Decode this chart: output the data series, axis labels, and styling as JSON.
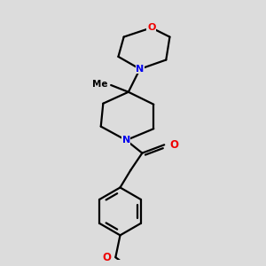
{
  "bg_color": "#dcdcdc",
  "bond_color": "#000000",
  "N_color": "#0000ee",
  "O_color": "#ee0000",
  "line_width": 1.6,
  "figsize": [
    3.0,
    3.0
  ],
  "dpi": 100,
  "xlim": [
    -1.4,
    1.6
  ],
  "ylim": [
    -2.8,
    2.8
  ]
}
